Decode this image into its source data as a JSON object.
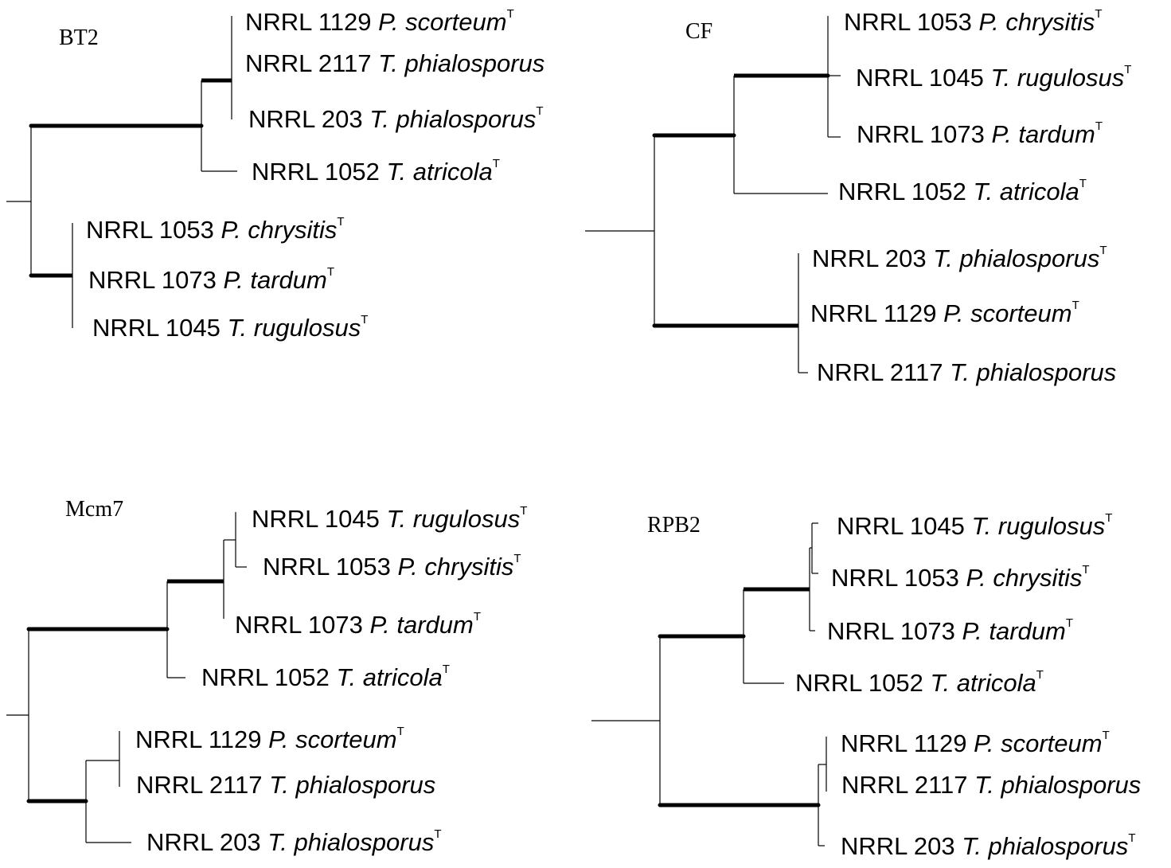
{
  "figure": {
    "panels": [
      {
        "id": "bt2",
        "title": "BT2",
        "taxa": [
          {
            "strain": "NRRL 1129",
            "genus": "P.",
            "species": "scorteum",
            "type": "T"
          },
          {
            "strain": "NRRL 2117",
            "genus": "T.",
            "species": "phialosporus",
            "type": ""
          },
          {
            "strain": "NRRL 203",
            "genus": "T.",
            "species": "phialosporus",
            "type": "T"
          },
          {
            "strain": "NRRL 1052",
            "genus": "T.",
            "species": "atricola",
            "type": "T"
          },
          {
            "strain": "NRRL 1053",
            "genus": "P.",
            "species": "chrysitis",
            "type": "T"
          },
          {
            "strain": "NRRL 1073",
            "genus": "P.",
            "species": "tardum",
            "type": "T"
          },
          {
            "strain": "NRRL 1045",
            "genus": "T.",
            "species": "rugulosus",
            "type": "T"
          }
        ]
      },
      {
        "id": "cf",
        "title": "CF",
        "taxa": [
          {
            "strain": "NRRL 1053",
            "genus": "P.",
            "species": "chrysitis",
            "type": "T"
          },
          {
            "strain": "NRRL 1045",
            "genus": "T.",
            "species": "rugulosus",
            "type": "T"
          },
          {
            "strain": "NRRL 1073",
            "genus": "P.",
            "species": "tardum",
            "type": "T"
          },
          {
            "strain": "NRRL 1052",
            "genus": "T.",
            "species": "atricola",
            "type": "T"
          },
          {
            "strain": "NRRL 203",
            "genus": "T.",
            "species": "phialosporus",
            "type": "T"
          },
          {
            "strain": "NRRL 1129",
            "genus": "P.",
            "species": "scorteum",
            "type": "T"
          },
          {
            "strain": "NRRL 2117",
            "genus": "T.",
            "species": "phialosporus",
            "type": ""
          }
        ]
      },
      {
        "id": "mcm7",
        "title": "Mcm7",
        "taxa": [
          {
            "strain": "NRRL 1045",
            "genus": "T.",
            "species": "rugulosus",
            "type": "T"
          },
          {
            "strain": "NRRL 1053",
            "genus": "P.",
            "species": "chrysitis",
            "type": "T"
          },
          {
            "strain": "NRRL 1073",
            "genus": "P.",
            "species": "tardum",
            "type": "T"
          },
          {
            "strain": "NRRL 1052",
            "genus": "T.",
            "species": "atricola",
            "type": "T"
          },
          {
            "strain": "NRRL 1129",
            "genus": "P.",
            "species": "scorteum",
            "type": "T"
          },
          {
            "strain": "NRRL 2117",
            "genus": "T.",
            "species": "phialosporus",
            "type": ""
          },
          {
            "strain": "NRRL 203",
            "genus": "T.",
            "species": "phialosporus",
            "type": "T"
          }
        ]
      },
      {
        "id": "rpb2",
        "title": "RPB2",
        "taxa": [
          {
            "strain": "NRRL 1045",
            "genus": "T.",
            "species": "rugulosus",
            "type": "T"
          },
          {
            "strain": "NRRL 1053",
            "genus": "P.",
            "species": "chrysitis",
            "type": "T"
          },
          {
            "strain": "NRRL 1073",
            "genus": "P.",
            "species": "tardum",
            "type": "T"
          },
          {
            "strain": "NRRL 1052",
            "genus": "T.",
            "species": "atricola",
            "type": "T"
          },
          {
            "strain": "NRRL 1129",
            "genus": "P.",
            "species": "scorteum",
            "type": "T"
          },
          {
            "strain": "NRRL 2117",
            "genus": "T.",
            "species": "phialosporus",
            "type": ""
          },
          {
            "strain": "NRRL 203",
            "genus": "T.",
            "species": "phialosporus",
            "type": "T"
          }
        ]
      }
    ]
  }
}
